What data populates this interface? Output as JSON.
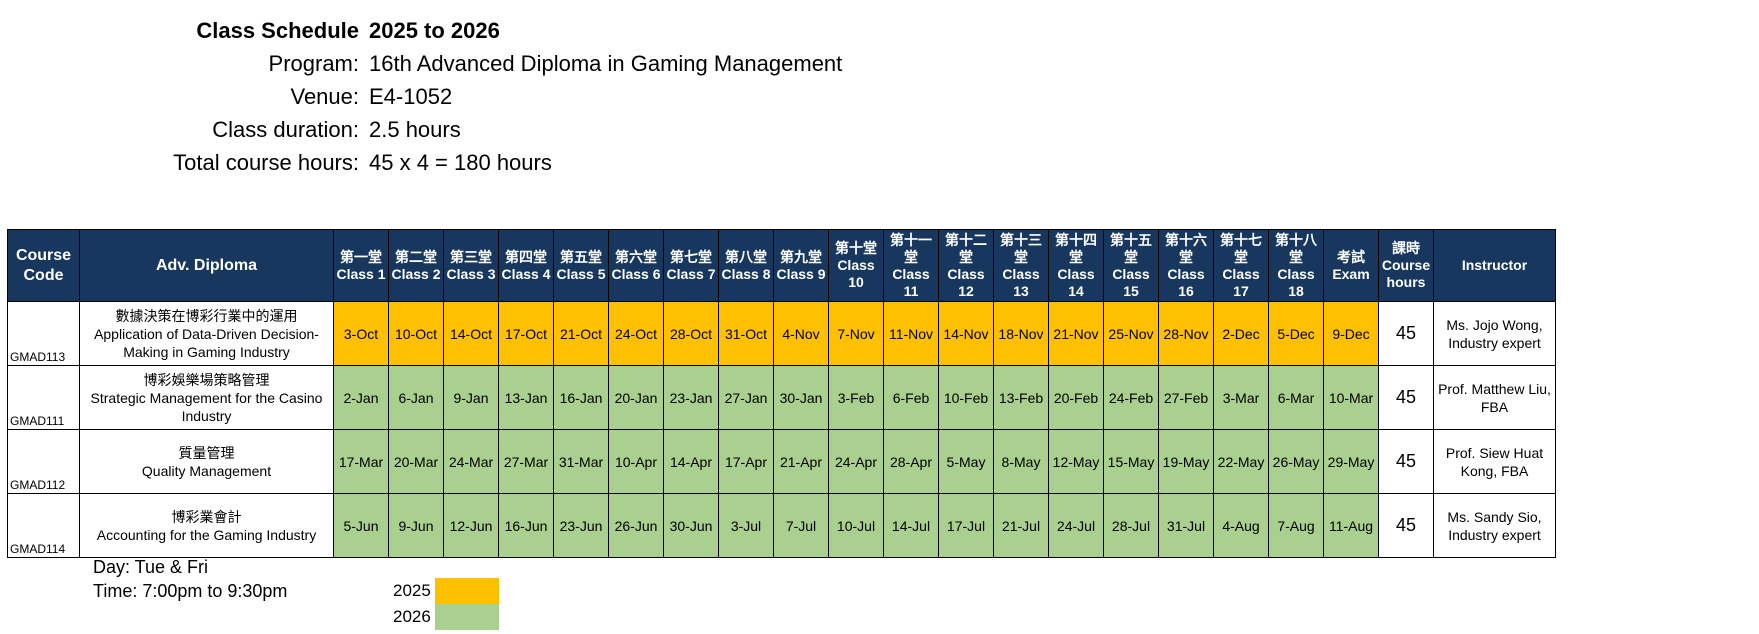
{
  "header": {
    "title_label": "Class Schedule",
    "title_value": "2025 to 2026",
    "program_label": "Program:",
    "program_value": "16th Advanced Diploma in Gaming Management",
    "venue_label": "Venue:",
    "venue_value": "E4-1052",
    "duration_label": "Class duration:",
    "duration_value": "2.5 hours",
    "total_label": "Total course hours:",
    "total_value": "45 x 4 = 180 hours"
  },
  "table": {
    "headers": {
      "course_code": [
        "Course",
        "Code"
      ],
      "adv_diploma": "Adv. Diploma",
      "classes": [
        [
          "第一堂",
          "Class 1"
        ],
        [
          "第二堂",
          "Class 2"
        ],
        [
          "第三堂",
          "Class 3"
        ],
        [
          "第四堂",
          "Class 4"
        ],
        [
          "第五堂",
          "Class 5"
        ],
        [
          "第六堂",
          "Class 6"
        ],
        [
          "第七堂",
          "Class 7"
        ],
        [
          "第八堂",
          "Class 8"
        ],
        [
          "第九堂",
          "Class 9"
        ],
        [
          "第十堂",
          "Class",
          "10"
        ],
        [
          "第十一",
          "堂",
          "Class",
          "11"
        ],
        [
          "第十二",
          "堂",
          "Class",
          "12"
        ],
        [
          "第十三",
          "堂",
          "Class",
          "13"
        ],
        [
          "第十四",
          "堂",
          "Class",
          "14"
        ],
        [
          "第十五",
          "堂",
          "Class",
          "15"
        ],
        [
          "第十六",
          "堂",
          "Class",
          "16"
        ],
        [
          "第十七",
          "堂",
          "Class",
          "17"
        ],
        [
          "第十八",
          "堂",
          "Class",
          "18"
        ]
      ],
      "exam": [
        "考試",
        "Exam"
      ],
      "hours": [
        "課時",
        "Course",
        "hours"
      ],
      "instructor": "Instructor"
    },
    "rows": [
      {
        "code": "GMAD113",
        "name_zh": "數據決策在博彩行業中的運用",
        "name_en": "Application of Data-Driven Decision-Making in Gaming Industry",
        "year": "2025",
        "dates": [
          "3-Oct",
          "10-Oct",
          "14-Oct",
          "17-Oct",
          "21-Oct",
          "24-Oct",
          "28-Oct",
          "31-Oct",
          "4-Nov",
          "7-Nov",
          "11-Nov",
          "14-Nov",
          "18-Nov",
          "21-Nov",
          "25-Nov",
          "28-Nov",
          "2-Dec",
          "5-Dec",
          "9-Dec"
        ],
        "hours": "45",
        "instructor": "Ms. Jojo Wong, Industry expert"
      },
      {
        "code": "GMAD111",
        "name_zh": "博彩娛樂場策略管理",
        "name_en": "Strategic Management for the Casino Industry",
        "year": "2026",
        "dates": [
          "2-Jan",
          "6-Jan",
          "9-Jan",
          "13-Jan",
          "16-Jan",
          "20-Jan",
          "23-Jan",
          "27-Jan",
          "30-Jan",
          "3-Feb",
          "6-Feb",
          "10-Feb",
          "13-Feb",
          "20-Feb",
          "24-Feb",
          "27-Feb",
          "3-Mar",
          "6-Mar",
          "10-Mar"
        ],
        "hours": "45",
        "instructor": "Prof. Matthew Liu, FBA"
      },
      {
        "code": "GMAD112",
        "name_zh": "質量管理",
        "name_en": "Quality Management",
        "year": "2026",
        "dates": [
          "17-Mar",
          "20-Mar",
          "24-Mar",
          "27-Mar",
          "31-Mar",
          "10-Apr",
          "14-Apr",
          "17-Apr",
          "21-Apr",
          "24-Apr",
          "28-Apr",
          "5-May",
          "8-May",
          "12-May",
          "15-May",
          "19-May",
          "22-May",
          "26-May",
          "29-May"
        ],
        "hours": "45",
        "instructor": "Prof. Siew Huat Kong, FBA"
      },
      {
        "code": "GMAD114",
        "name_zh": "博彩業會計",
        "name_en": "Accounting for the Gaming Industry",
        "year": "2026",
        "dates": [
          "5-Jun",
          "9-Jun",
          "12-Jun",
          "16-Jun",
          "23-Jun",
          "26-Jun",
          "30-Jun",
          "3-Jul",
          "7-Jul",
          "10-Jul",
          "14-Jul",
          "17-Jul",
          "21-Jul",
          "24-Jul",
          "28-Jul",
          "31-Jul",
          "4-Aug",
          "7-Aug",
          "11-Aug"
        ],
        "hours": "45",
        "instructor": "Ms. Sandy Sio, Industry expert"
      }
    ]
  },
  "footer": {
    "day": "Day: Tue & Fri",
    "time": "Time: 7:00pm to 9:30pm"
  },
  "legend": [
    {
      "year": "2025",
      "color": "#ffc000"
    },
    {
      "year": "2026",
      "color": "#a9d08e"
    }
  ]
}
